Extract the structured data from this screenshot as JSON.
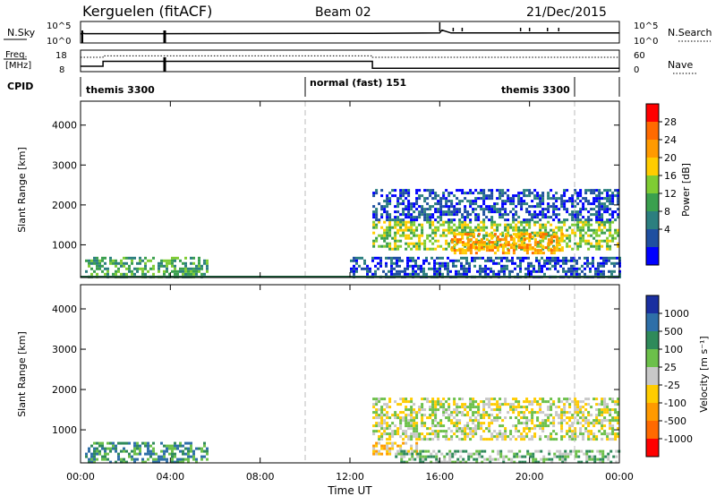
{
  "header": {
    "site": "Kerguelen (fitACF)",
    "beam": "Beam 02",
    "date": "21/Dec/2015"
  },
  "top_panel_1": {
    "left_label": "N.Sky",
    "right_label": "N.Search",
    "left_ticks": [
      "10^5",
      "10^0"
    ],
    "right_ticks": [
      "10^5",
      "10^0"
    ]
  },
  "top_panel_2": {
    "left_label_1": "Freq.",
    "left_label_2": "[MHz]",
    "right_label": "Nave",
    "left_ticks": [
      "18",
      "8"
    ],
    "right_ticks": [
      "60",
      "0"
    ]
  },
  "cpid": {
    "label": "CPID",
    "segments": [
      {
        "text": "themis 3300",
        "start": "00:00",
        "end": "10:00"
      },
      {
        "text": "normal (fast) 151",
        "start": "10:00",
        "end": "22:00"
      },
      {
        "text": "themis 3300",
        "start": "22:00",
        "end": "24:00"
      }
    ]
  },
  "x_axis": {
    "label": "Time UT",
    "ticks": [
      "00:00",
      "04:00",
      "08:00",
      "12:00",
      "16:00",
      "20:00",
      "00:00"
    ]
  },
  "power_colorbar": {
    "label": "Power [dB]",
    "ticks": [
      "28",
      "24",
      "20",
      "16",
      "12",
      "8",
      "4"
    ],
    "colors": [
      "#ff0000",
      "#ff6a00",
      "#ff9a00",
      "#ffcc00",
      "#7fcc33",
      "#3aa04e",
      "#2c7f7f",
      "#1f4fa0",
      "#0000ff"
    ]
  },
  "velocity_colorbar": {
    "label": "Velocity [m s⁻¹]",
    "ticks": [
      "1000",
      "500",
      "100",
      "25",
      "-25",
      "-100",
      "-500",
      "-1000"
    ],
    "colors": [
      "#1a2fa0",
      "#2e6fa8",
      "#2f8a5a",
      "#6cc04a",
      "#c8c8c8",
      "#ffcc00",
      "#ff9a00",
      "#ff6a00",
      "#ff0000"
    ]
  },
  "chart_data": [
    {
      "type": "line",
      "title": "",
      "xlabel": "Time UT",
      "series": [
        {
          "name": "N.Sky",
          "x": [
            0.0,
            0.1,
            0.2,
            3.7,
            13.0,
            16.0,
            16.1,
            16.5,
            19.0,
            24.0
          ],
          "y": [
            0.7,
            0.74,
            0.72,
            0.72,
            0.75,
            0.78,
            1.0,
            0.78,
            0.78,
            0.78
          ]
        }
      ],
      "ylim": [
        0,
        1
      ],
      "note": ""
    },
    {
      "type": "line",
      "xlabel": "Time UT",
      "series": [
        {
          "name": "Freq.",
          "x": [
            0.0,
            1.0,
            1.0,
            13.0,
            13.0,
            24.0
          ],
          "y": [
            10.5,
            10.5,
            12.8,
            12.8,
            9.6,
            9.6
          ]
        },
        {
          "name": "Nave",
          "x": [
            0.0,
            1.0,
            1.0,
            13.0,
            13.0,
            24.0
          ],
          "y": [
            40,
            40,
            44,
            44,
            40,
            40
          ]
        }
      ],
      "ylim": [
        8,
        18
      ],
      "y2lim": [
        0,
        60
      ]
    },
    {
      "type": "heatmap",
      "title": "",
      "xlabel": "Time UT",
      "ylabel": "Slant Range [km]",
      "xlim": [
        0,
        24
      ],
      "ylim": [
        180,
        4600
      ],
      "yticks": [
        1000,
        2000,
        3000,
        4000
      ],
      "colorbar": "Power [dB]",
      "regions": [
        {
          "t0": 0.2,
          "t1": 5.7,
          "r0": 200,
          "r1": 700,
          "level": 5
        },
        {
          "t0": 13.0,
          "t1": 24.0,
          "r0": 900,
          "r1": 1600,
          "level": 4
        },
        {
          "t0": 16.5,
          "t1": 21.5,
          "r0": 800,
          "r1": 1300,
          "level": 2
        },
        {
          "t0": 12.0,
          "t1": 24.0,
          "r0": 200,
          "r1": 700,
          "level": 7
        },
        {
          "t0": 13.0,
          "t1": 24.0,
          "r0": 1600,
          "r1": 2400,
          "level": 7
        }
      ]
    },
    {
      "type": "heatmap",
      "xlabel": "Time UT",
      "ylabel": "Slant Range [km]",
      "xlim": [
        0,
        24
      ],
      "ylim": [
        180,
        4600
      ],
      "yticks": [
        1000,
        2000,
        3000,
        4000
      ],
      "colorbar": "Velocity [m s⁻¹]",
      "regions": [
        {
          "t0": 0.2,
          "t1": 5.7,
          "r0": 200,
          "r1": 700,
          "level": 2
        },
        {
          "t0": 13.0,
          "t1": 24.0,
          "r0": 800,
          "r1": 1800,
          "level": 4
        },
        {
          "t0": 13.0,
          "t1": 15.0,
          "r0": 400,
          "r1": 700,
          "level": 5
        },
        {
          "t0": 14.0,
          "t1": 24.0,
          "r0": 180,
          "r1": 500,
          "level": 3
        }
      ]
    }
  ]
}
